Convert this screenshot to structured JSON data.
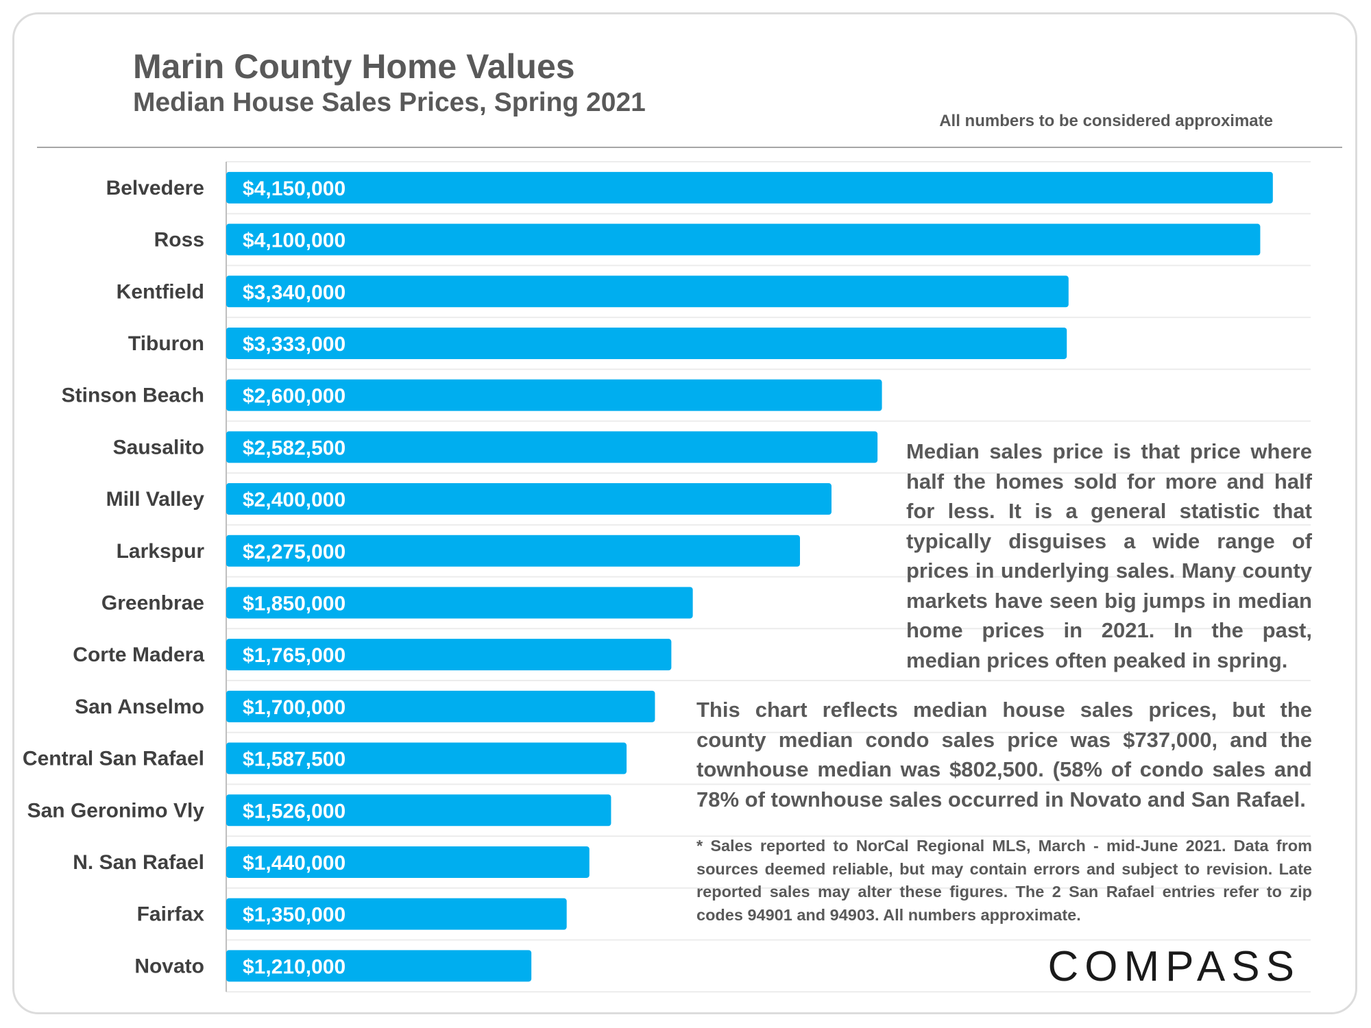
{
  "header": {
    "title": "Marin County Home Values",
    "subtitle": "Median House Sales Prices, Spring 2021",
    "note": "All numbers to be considered approximate"
  },
  "chart_data": {
    "type": "bar",
    "orientation": "horizontal",
    "categories": [
      "Belvedere",
      "Ross",
      "Kentfield",
      "Tiburon",
      "Stinson Beach",
      "Sausalito",
      "Mill Valley",
      "Larkspur",
      "Greenbrae",
      "Corte Madera",
      "San Anselmo",
      "Central San Rafael",
      "San Geronimo Vly",
      "N. San Rafael",
      "Fairfax",
      "Novato"
    ],
    "values": [
      4150000,
      4100000,
      3340000,
      3333000,
      2600000,
      2582500,
      2400000,
      2275000,
      1850000,
      1765000,
      1700000,
      1587500,
      1526000,
      1440000,
      1350000,
      1210000
    ],
    "labels": [
      "$4,150,000",
      "$4,100,000",
      "$3,340,000",
      "$3,333,000",
      "$2,600,000",
      "$2,582,500",
      "$2,400,000",
      "$2,275,000",
      "$1,850,000",
      "$1,765,000",
      "$1,700,000",
      "$1,587,500",
      "$1,526,000",
      "$1,440,000",
      "$1,350,000",
      "$1,210,000"
    ],
    "bar_color": "#00aeef",
    "label_color": "#ffffff",
    "xlim": [
      0,
      4300000
    ],
    "grid": "horizontal"
  },
  "notes": {
    "median_explainer": "Median sales price is that price where half the homes sold for more and half for less. It is a general statistic that typically disguises a wide range of prices in underlying sales. Many county markets have seen big jumps in median home prices in 2021. In the past, median prices often peaked in spring.",
    "condo_note": "This chart reflects median house sales prices, but the county median condo sales price was $737,000, and the townhouse median was $802,500. (58% of condo sales and 78% of townhouse sales occurred in Novato and San Rafael.",
    "footnote": "* Sales reported to NorCal Regional MLS, March - mid-June 2021. Data from sources deemed reliable, but may contain errors and subject to revision. Late reported sales may alter these figures. The 2 San Rafael entries refer to zip codes 94901 and 94903. All numbers approximate."
  },
  "brand": {
    "logo": "COMPASS"
  }
}
